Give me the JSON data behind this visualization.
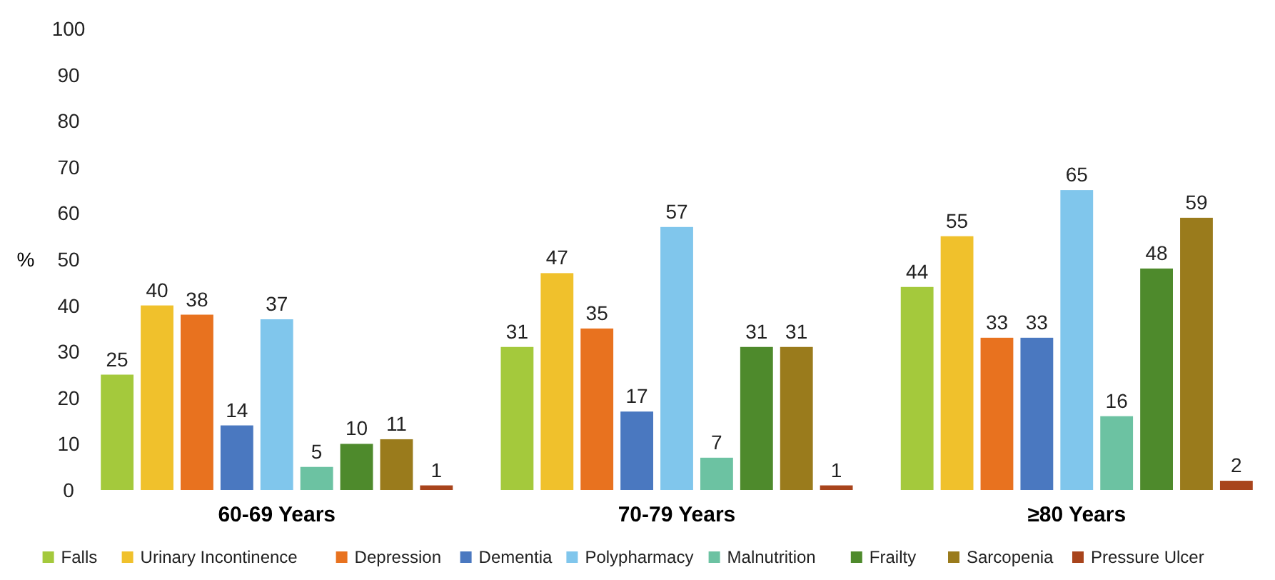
{
  "chart_data": {
    "type": "bar",
    "ylabel": "%",
    "categories": [
      "60-69 Years",
      "70-79 Years",
      "≥80 Years"
    ],
    "series": [
      {
        "name": "Falls",
        "color": "#a4c93c",
        "values": [
          25,
          31,
          44
        ]
      },
      {
        "name": "Urinary Incontinence",
        "color": "#f0c12c",
        "values": [
          40,
          47,
          55
        ]
      },
      {
        "name": "Depression",
        "color": "#e8721f",
        "values": [
          38,
          35,
          33
        ]
      },
      {
        "name": "Dementia",
        "color": "#4a78c0",
        "values": [
          14,
          17,
          33
        ]
      },
      {
        "name": "Polypharmacy",
        "color": "#80c6ec",
        "values": [
          37,
          57,
          65
        ]
      },
      {
        "name": "Malnutrition",
        "color": "#6cc2a2",
        "values": [
          5,
          7,
          16
        ]
      },
      {
        "name": "Frailty",
        "color": "#4e8a2c",
        "values": [
          10,
          31,
          48
        ]
      },
      {
        "name": "Sarcopenia",
        "color": "#9a7b1c",
        "values": [
          11,
          31,
          59
        ]
      },
      {
        "name": "Pressure Ulcer",
        "color": "#a8441c",
        "values": [
          1,
          1,
          2
        ]
      }
    ],
    "ylim": [
      0,
      100
    ],
    "yticks": [
      0,
      10,
      20,
      30,
      40,
      50,
      60,
      70,
      80,
      90,
      100
    ],
    "data_labels": true,
    "legend": "bottom"
  }
}
